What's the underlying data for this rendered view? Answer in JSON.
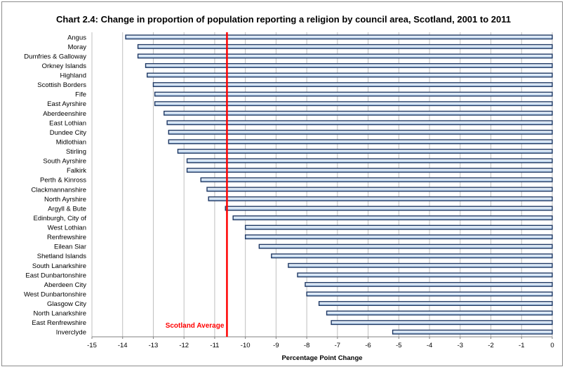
{
  "colors": {
    "bar_fill_top": "#ffffff",
    "bar_fill_bottom": "#aac8e8",
    "bar_stroke": "#1f3864",
    "gridline": "#bfbfbf",
    "reference": "#ff0000"
  },
  "chart_data": {
    "type": "bar",
    "orientation": "horizontal",
    "title": "Chart 2.4: Change in proportion of population reporting a religion by council area, Scotland, 2001 to 2011",
    "xlabel": "Percentage Point Change",
    "ylabel": "",
    "xlim": [
      -15,
      0
    ],
    "xticks": [
      -15,
      -14,
      -13,
      -12,
      -11,
      -10,
      -9,
      -8,
      -7,
      -6,
      -5,
      -4,
      -3,
      -2,
      -1,
      0
    ],
    "grid": true,
    "categories": [
      "Angus",
      "Moray",
      "Dumfries & Galloway",
      "Orkney Islands",
      "Highland",
      "Scottish Borders",
      "Fife",
      "East Ayrshire",
      "Aberdeenshire",
      "East Lothian",
      "Dundee City",
      "Midlothian",
      "Stirling",
      "South Ayrshire",
      "Falkirk",
      "Perth & Kinross",
      "Clackmannanshire",
      "North Ayrshire",
      "Argyll & Bute",
      "Edinburgh, City of",
      "West Lothian",
      "Renfrewshire",
      "Eilean Siar",
      "Shetland Islands",
      "South Lanarkshire",
      "East Dunbartonshire",
      "Aberdeen City",
      "West Dunbartonshire",
      "Glasgow City",
      "North Lanarkshire",
      "East Renfrewshire",
      "Inverclyde"
    ],
    "values": [
      -13.9,
      -13.5,
      -13.5,
      -13.25,
      -13.2,
      -13.0,
      -12.95,
      -12.95,
      -12.65,
      -12.55,
      -12.5,
      -12.5,
      -12.2,
      -11.9,
      -11.9,
      -11.45,
      -11.25,
      -11.2,
      -10.65,
      -10.4,
      -10.0,
      -10.0,
      -9.55,
      -9.15,
      -8.6,
      -8.3,
      -8.05,
      -8.0,
      -7.6,
      -7.35,
      -7.2,
      -5.2
    ],
    "reference_line": {
      "label": "Scotland Average",
      "value": -10.6
    }
  }
}
